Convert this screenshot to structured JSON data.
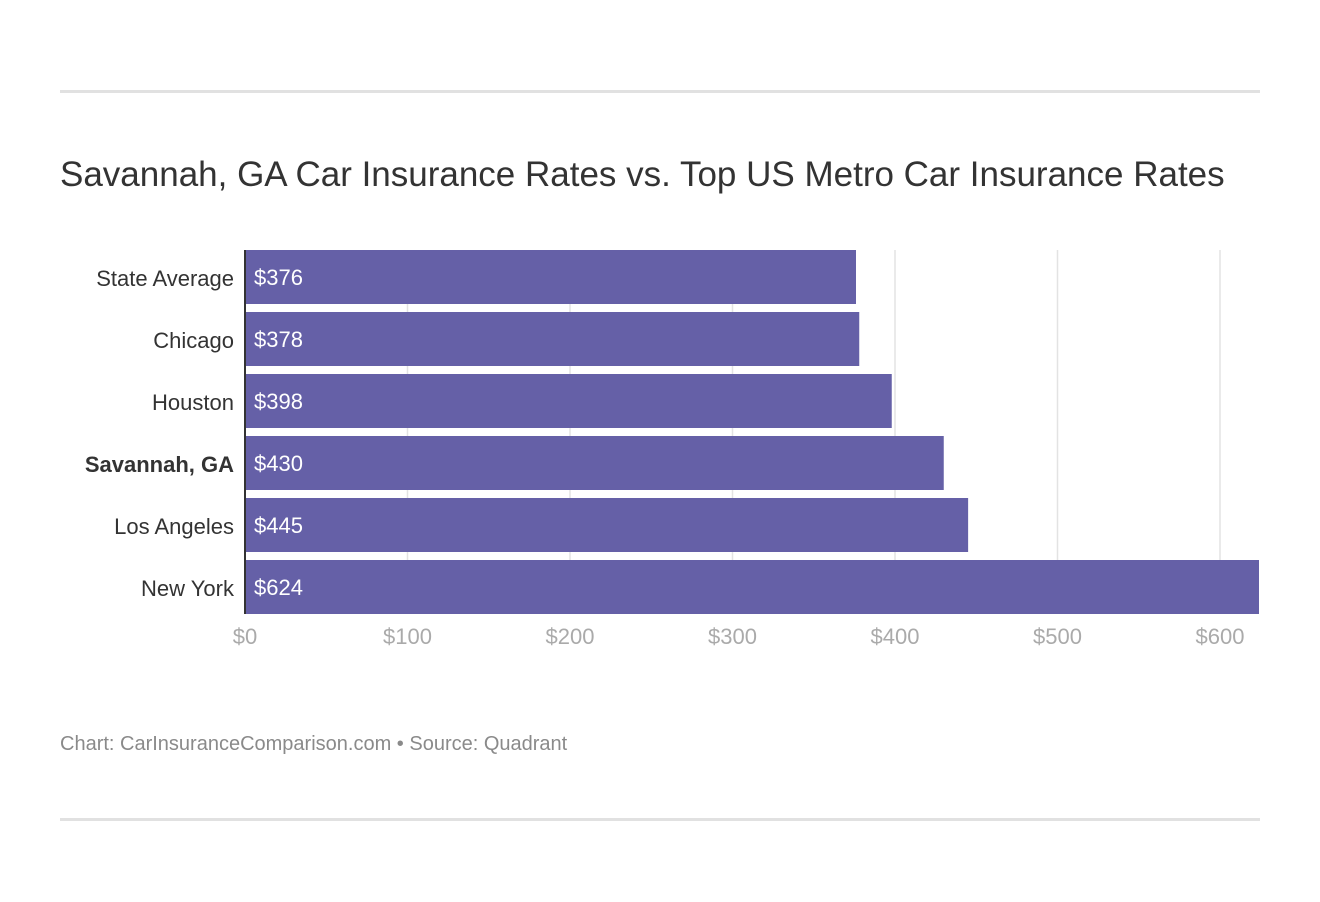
{
  "chart_data": {
    "type": "bar",
    "orientation": "horizontal",
    "title": "Savannah, GA Car Insurance Rates vs. Top US Metro Car Insurance Rates",
    "categories": [
      "State Average",
      "Chicago",
      "Houston",
      "Savannah, GA",
      "Los Angeles",
      "New York"
    ],
    "values": [
      376,
      378,
      398,
      430,
      445,
      624
    ],
    "data_labels": [
      "$376",
      "$378",
      "$398",
      "$430",
      "$445",
      "$624"
    ],
    "highlighted_category": "Savannah, GA",
    "xlim": [
      0,
      624
    ],
    "x_ticks": [
      0,
      100,
      200,
      300,
      400,
      500,
      600
    ],
    "x_tick_labels": [
      "$0",
      "$100",
      "$200",
      "$300",
      "$400",
      "$500",
      "$600"
    ],
    "grid": true,
    "bar_color": "#6560a7"
  },
  "footer": "Chart: CarInsuranceComparison.com • Source: Quadrant"
}
